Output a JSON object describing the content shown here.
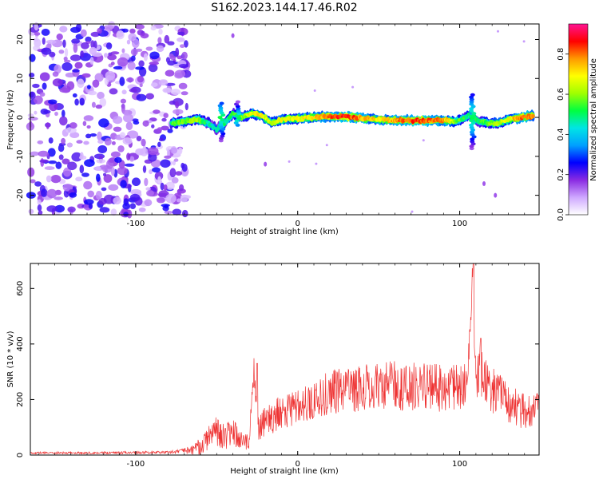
{
  "title": "S162.2023.144.17.46.R02",
  "chart_data": [
    {
      "type": "heatmap",
      "xlabel": "Height of straight line (km)",
      "ylabel": "Frequency (Hz)",
      "xlim": [
        -165,
        149
      ],
      "ylim": [
        -25,
        24
      ],
      "x_ticks": [
        -100,
        0,
        100
      ],
      "y_ticks": [
        -20,
        -10,
        0,
        10,
        20
      ],
      "colorbar": {
        "label": "Normalized spectral amplitude",
        "range": [
          0.0,
          0.95
        ],
        "ticks": [
          "0.0",
          "0.2",
          "0.4",
          "0.6",
          "0.8"
        ],
        "tick_values": [
          0.0,
          0.2,
          0.4,
          0.6,
          0.8
        ],
        "colormap": [
          "#ffffff",
          "#cfa8ff",
          "#8a2be2",
          "#0000ff",
          "#00a0ff",
          "#00e5e5",
          "#00ff40",
          "#a0ff00",
          "#ffff00",
          "#ff9900",
          "#ff0000",
          "#ff1493"
        ]
      },
      "noise_region_x": [
        -165,
        -68
      ],
      "ridge": [
        {
          "x": -78,
          "f": -1.5,
          "a": 0.55
        },
        {
          "x": -70,
          "f": -1.0,
          "a": 0.6
        },
        {
          "x": -62,
          "f": -0.5,
          "a": 0.65
        },
        {
          "x": -55,
          "f": -1.5,
          "a": 0.5
        },
        {
          "x": -50,
          "f": -3.0,
          "a": 0.45
        },
        {
          "x": -45,
          "f": -1.5,
          "a": 0.5
        },
        {
          "x": -40,
          "f": 1.0,
          "a": 0.55
        },
        {
          "x": -35,
          "f": 0.0,
          "a": 0.6
        },
        {
          "x": -28,
          "f": 1.0,
          "a": 0.7
        },
        {
          "x": -22,
          "f": 0.5,
          "a": 0.75
        },
        {
          "x": -16,
          "f": -1.5,
          "a": 0.65
        },
        {
          "x": -10,
          "f": -0.5,
          "a": 0.7
        },
        {
          "x": 0,
          "f": -0.3,
          "a": 0.7
        },
        {
          "x": 10,
          "f": 0.0,
          "a": 0.75
        },
        {
          "x": 20,
          "f": 0.3,
          "a": 0.85
        },
        {
          "x": 30,
          "f": 0.2,
          "a": 0.9
        },
        {
          "x": 40,
          "f": -0.2,
          "a": 0.8
        },
        {
          "x": 50,
          "f": -0.5,
          "a": 0.75
        },
        {
          "x": 60,
          "f": -0.8,
          "a": 0.8
        },
        {
          "x": 70,
          "f": -0.8,
          "a": 0.88
        },
        {
          "x": 80,
          "f": -0.8,
          "a": 0.85
        },
        {
          "x": 90,
          "f": -0.8,
          "a": 0.82
        },
        {
          "x": 98,
          "f": -1.0,
          "a": 0.6
        },
        {
          "x": 106,
          "f": 0.5,
          "a": 0.5
        },
        {
          "x": 112,
          "f": -1.0,
          "a": 0.55
        },
        {
          "x": 118,
          "f": -1.5,
          "a": 0.6
        },
        {
          "x": 124,
          "f": -1.5,
          "a": 0.65
        },
        {
          "x": 130,
          "f": -0.5,
          "a": 0.7
        },
        {
          "x": 138,
          "f": 0.0,
          "a": 0.85
        },
        {
          "x": 146,
          "f": 0.5,
          "a": 0.8
        }
      ]
    },
    {
      "type": "line",
      "xlabel": "Height of straight line (km)",
      "ylabel": "SNR (10 * v/v)",
      "xlim": [
        -165,
        149
      ],
      "ylim": [
        0,
        690
      ],
      "x_ticks": [
        -100,
        0,
        100
      ],
      "y_ticks": [
        0,
        200,
        400,
        600
      ],
      "color": "#ee3333",
      "series": [
        {
          "x": [
            -165,
            -140,
            -120,
            -100,
            -80,
            -70,
            -62,
            -55,
            -50,
            -45,
            -40,
            -35,
            -30,
            -27,
            -25,
            -20,
            -10,
            0,
            10,
            20,
            30,
            40,
            50,
            60,
            70,
            80,
            90,
            100,
            105,
            108,
            110,
            112,
            115,
            120,
            130,
            140,
            149
          ],
          "y": [
            10,
            10,
            10,
            12,
            12,
            20,
            40,
            90,
            120,
            90,
            110,
            80,
            60,
            330,
            120,
            150,
            190,
            210,
            240,
            270,
            285,
            290,
            300,
            300,
            295,
            290,
            290,
            290,
            310,
            690,
            280,
            380,
            340,
            290,
            230,
            190,
            200
          ],
          "noise_amp": [
            5,
            5,
            5,
            6,
            6,
            10,
            40,
            60,
            70,
            60,
            60,
            50,
            40,
            60,
            60,
            70,
            80,
            80,
            90,
            100,
            110,
            110,
            110,
            110,
            110,
            110,
            110,
            110,
            90,
            60,
            110,
            120,
            120,
            110,
            90,
            80,
            70
          ]
        }
      ]
    }
  ]
}
